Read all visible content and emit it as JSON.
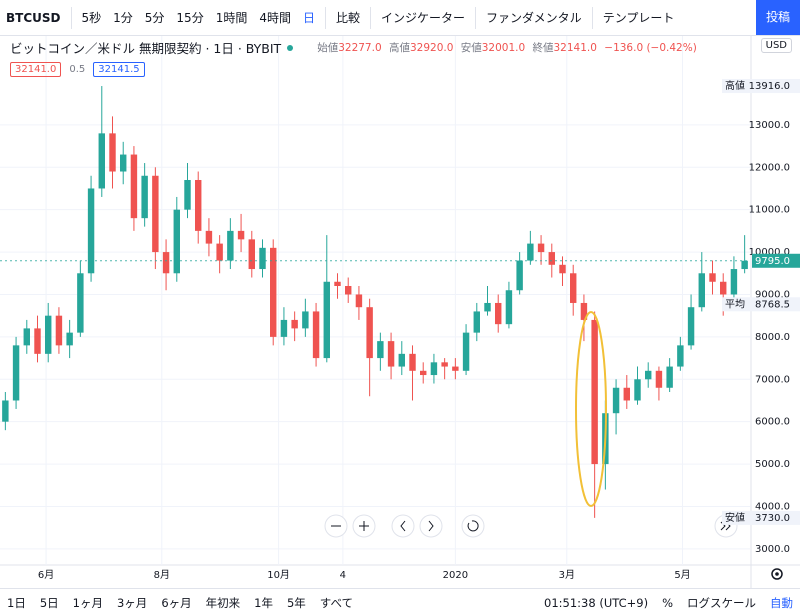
{
  "toolbar": {
    "symbol": "BTCUSD",
    "intervals": [
      "5秒",
      "1分",
      "5分",
      "15分",
      "1時間",
      "4時間",
      "日"
    ],
    "compare": "比較",
    "indicators": "インジケーター",
    "fundamentals": "ファンダメンタル",
    "templates": "テンプレート",
    "publish": "投稿"
  },
  "legend": {
    "title": "ビットコイン／米ドル 無期限契約 · 1日 · BYBIT",
    "ohlc": [
      [
        "始値",
        "32277.0"
      ],
      [
        "高値",
        "32920.0"
      ],
      [
        "安値",
        "32001.0"
      ],
      [
        "終値",
        "32141.0"
      ]
    ],
    "change": "−136.0 (−0.42%)",
    "bid": "32141.0",
    "spread": "0.5",
    "ask": "32141.5",
    "currency": "USD"
  },
  "chart_data": {
    "type": "candlestick",
    "up_color": "#26a69a",
    "down_color": "#ef5350",
    "open": [
      6000,
      6500,
      7800,
      8200,
      7600,
      8500,
      7800,
      8100,
      9500,
      11500,
      12800,
      11900,
      12300,
      10800,
      11800,
      10000,
      9500,
      11000,
      11700,
      10500,
      10200,
      9800,
      10500,
      10300,
      9600,
      10100,
      8000,
      8400,
      8200,
      8600,
      7500,
      9300,
      9200,
      9000,
      8700,
      7500,
      7900,
      7300,
      7600,
      7200,
      7100,
      7400,
      7300,
      7200,
      8100,
      8600,
      8800,
      8300,
      9100,
      9800,
      10200,
      10000,
      9700,
      9500,
      8800,
      8400,
      5000,
      6200,
      6800,
      6500,
      7000,
      7200,
      6800,
      7300,
      7800,
      8700,
      9500,
      9300,
      9000,
      9600
    ],
    "high": [
      6700,
      8000,
      8400,
      8500,
      8800,
      8700,
      8400,
      9800,
      11800,
      13916,
      13200,
      12600,
      12500,
      12100,
      12000,
      10300,
      11300,
      12100,
      11900,
      10800,
      10400,
      10800,
      10900,
      10500,
      10300,
      10300,
      8700,
      8600,
      8900,
      8800,
      10400,
      9500,
      9400,
      9200,
      8900,
      8100,
      8100,
      7900,
      7800,
      7400,
      7600,
      7500,
      7500,
      8300,
      8800,
      9200,
      9000,
      9300,
      10000,
      10500,
      10400,
      10200,
      9900,
      9700,
      9000,
      8600,
      6500,
      7000,
      7100,
      7300,
      7400,
      7300,
      7500,
      8000,
      9000,
      10000,
      9800,
      9500,
      9900,
      10400
    ],
    "low": [
      5800,
      6300,
      7600,
      7400,
      7400,
      7600,
      7500,
      8000,
      9300,
      11300,
      11500,
      11600,
      10500,
      10600,
      9600,
      9100,
      9300,
      10800,
      10200,
      9900,
      9500,
      9600,
      10000,
      9400,
      9400,
      7800,
      7800,
      7900,
      8000,
      7300,
      7400,
      8900,
      8800,
      8400,
      6600,
      7200,
      7000,
      7100,
      6500,
      6900,
      6900,
      7000,
      7000,
      7100,
      7900,
      8500,
      8100,
      8200,
      9000,
      9700,
      9700,
      9400,
      9200,
      8500,
      7900,
      3730,
      4400,
      5700,
      6300,
      6400,
      6800,
      6500,
      6700,
      7200,
      7700,
      8600,
      9000,
      8500,
      8900,
      9500
    ],
    "close": [
      6500,
      7800,
      8200,
      7600,
      8500,
      7800,
      8100,
      9500,
      11500,
      12800,
      11900,
      12300,
      10800,
      11800,
      10000,
      9500,
      11000,
      11700,
      10500,
      10200,
      9800,
      10500,
      10300,
      9600,
      10100,
      8000,
      8400,
      8200,
      8600,
      7500,
      9300,
      9200,
      9000,
      8700,
      7500,
      7900,
      7300,
      7600,
      7200,
      7100,
      7400,
      7300,
      7200,
      8100,
      8600,
      8800,
      8300,
      9100,
      9800,
      10200,
      10000,
      9700,
      9500,
      8800,
      8400,
      5000,
      6200,
      6800,
      6500,
      7000,
      7200,
      6800,
      7300,
      7800,
      8700,
      9500,
      9300,
      9000,
      9600,
      9795
    ],
    "xlim": [
      0,
      70
    ],
    "xticks": [
      {
        "value": 4.3,
        "label": "6月"
      },
      {
        "value": 15.1,
        "label": "8月"
      },
      {
        "value": 26,
        "label": "10月"
      },
      {
        "value": 32,
        "label": "4"
      },
      {
        "value": 42.5,
        "label": "2020"
      },
      {
        "value": 52.9,
        "label": "3月"
      },
      {
        "value": 63.7,
        "label": "5月"
      }
    ],
    "ylim": [
      2620,
      14530
    ],
    "yticks": [
      {
        "value": 3000,
        "label": "3000.0"
      },
      {
        "value": 4000,
        "label": "4000.0"
      },
      {
        "value": 5000,
        "label": "5000.0"
      },
      {
        "value": 6000,
        "label": "6000.0"
      },
      {
        "value": 7000,
        "label": "7000.0"
      },
      {
        "value": 8000,
        "label": "8000.0"
      },
      {
        "value": 9000,
        "label": "9000.0"
      },
      {
        "value": 10000,
        "label": "10000.0"
      },
      {
        "value": 11000,
        "label": "11000.0"
      },
      {
        "value": 12000,
        "label": "12000.0"
      },
      {
        "value": 13000,
        "label": "13000.0"
      }
    ],
    "price_tags": [
      {
        "name": "高値",
        "value": 13916,
        "label": "13916.0",
        "color": "#f0f3fa"
      },
      {
        "value": 9795,
        "label": "9795.0",
        "color": "#26a69a"
      },
      {
        "name": "平均",
        "value": 8768.5,
        "label": "8768.5",
        "color": "#f0f3fa"
      },
      {
        "name": "安値",
        "value": 3730,
        "label": "3730.0",
        "color": "#f0f3fa"
      }
    ]
  },
  "bottom_bar": {
    "ranges": [
      "1日",
      "5日",
      "1ヶ月",
      "3ヶ月",
      "6ヶ月",
      "年初来",
      "1年",
      "5年",
      "すべて"
    ],
    "time": "01:51:38 (UTC+9)",
    "percent": "%",
    "log": "ログスケール",
    "auto": "自動"
  }
}
